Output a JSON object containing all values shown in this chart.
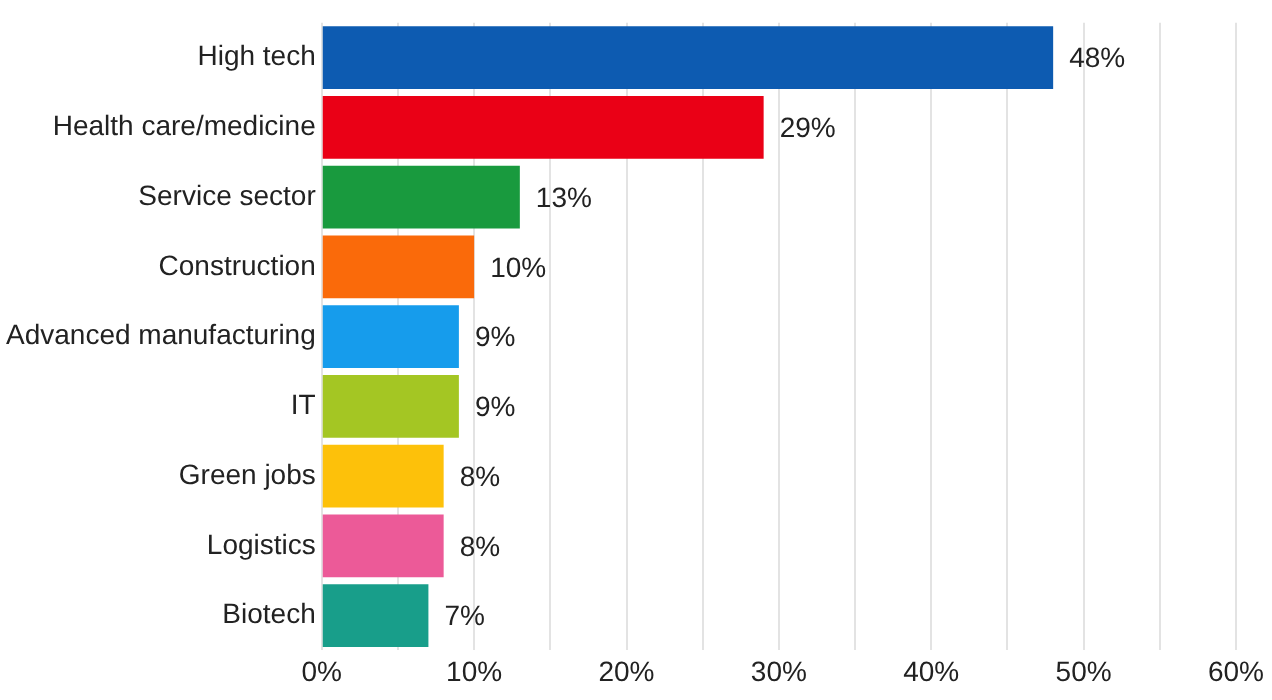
{
  "chart_data": {
    "type": "bar",
    "orientation": "horizontal",
    "categories": [
      "High tech",
      "Health care/medicine",
      "Service sector",
      "Construction",
      "Advanced manufacturing",
      "IT",
      "Green jobs",
      "Logistics",
      "Biotech"
    ],
    "values": [
      48,
      29,
      13,
      10,
      9,
      9,
      8,
      8,
      7
    ],
    "colors": [
      "#0d5bb1",
      "#ea0016",
      "#199a3e",
      "#fa6a0a",
      "#169cec",
      "#a4c623",
      "#fdc10a",
      "#ec5a98",
      "#189e8a"
    ],
    "value_labels": [
      "48%",
      "29%",
      "13%",
      "10%",
      "9%",
      "9%",
      "8%",
      "8%",
      "7%"
    ],
    "xlim": [
      0,
      60
    ],
    "xticks": [
      {
        "value": 0,
        "label": "0%"
      },
      {
        "value": 5,
        "label": null
      },
      {
        "value": 10,
        "label": "10%"
      },
      {
        "value": 15,
        "label": null
      },
      {
        "value": 20,
        "label": "20%"
      },
      {
        "value": 25,
        "label": null
      },
      {
        "value": 30,
        "label": "30%"
      },
      {
        "value": 35,
        "label": null
      },
      {
        "value": 40,
        "label": "40%"
      },
      {
        "value": 45,
        "label": null
      },
      {
        "value": 50,
        "label": "50%"
      },
      {
        "value": 55,
        "label": null
      },
      {
        "value": 60,
        "label": "60%"
      }
    ],
    "grid": "x",
    "legend": false
  }
}
